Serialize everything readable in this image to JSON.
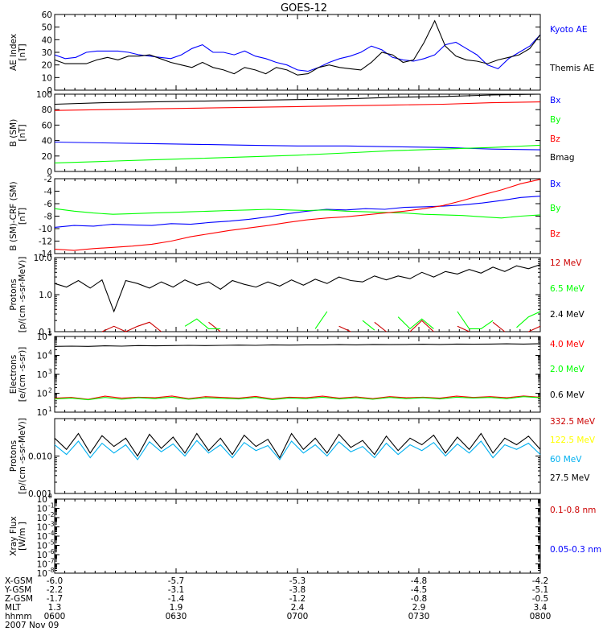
{
  "title": "GOES-12",
  "colors": {
    "black": "#000000",
    "blue": "#0000ff",
    "green": "#00ff00",
    "red": "#ff0000",
    "yellow": "#ffff00",
    "cyan": "#00b0f0",
    "darkred": "#cc0000"
  },
  "chart_data": [
    {
      "id": "ae",
      "type": "line",
      "ylabel_lines": [
        "AE Index",
        "[nT]"
      ],
      "ylim": [
        0,
        60
      ],
      "yscale": "linear",
      "ticks": [
        "0",
        "10",
        "20",
        "30",
        "40",
        "50",
        "60"
      ],
      "tick_values": [
        0,
        10,
        20,
        30,
        40,
        50,
        60
      ],
      "series": [
        {
          "name": "Kyoto AE",
          "color": "#0000ff",
          "values": [
            28,
            25,
            26,
            30,
            31,
            31,
            31,
            30,
            28,
            27,
            26,
            25,
            28,
            33,
            36,
            30,
            30,
            28,
            31,
            27,
            25,
            22,
            20,
            16,
            15,
            18,
            22,
            25,
            27,
            30,
            35,
            32,
            26,
            24,
            23,
            25,
            28,
            36,
            38,
            33,
            28,
            20,
            17,
            25,
            30,
            35,
            44
          ]
        },
        {
          "name": "Themis AE",
          "color": "#000000",
          "values": [
            24,
            21,
            21,
            21,
            24,
            26,
            24,
            27,
            27,
            28,
            25,
            22,
            20,
            18,
            22,
            18,
            16,
            13,
            18,
            16,
            13,
            18,
            16,
            12,
            13,
            18,
            20,
            18,
            17,
            16,
            22,
            30,
            28,
            22,
            24,
            38,
            55,
            35,
            27,
            24,
            23,
            21,
            24,
            26,
            28,
            33,
            44
          ]
        }
      ]
    },
    {
      "id": "bsm",
      "type": "line",
      "ylabel_lines": [
        "B (SM)",
        "[nT]"
      ],
      "ylim": [
        0,
        100
      ],
      "yscale": "linear",
      "ticks": [
        "0",
        "20",
        "40",
        "60",
        "80",
        "100"
      ],
      "tick_values": [
        0,
        20,
        40,
        60,
        80,
        100
      ],
      "series": [
        {
          "name": "Bx",
          "color": "#0000ff",
          "values": [
            38,
            37,
            36,
            35,
            34,
            33,
            33,
            32,
            31,
            29,
            28
          ]
        },
        {
          "name": "By",
          "color": "#00ff00",
          "values": [
            11,
            13,
            15,
            17,
            19,
            21,
            24,
            27,
            29,
            31,
            34
          ]
        },
        {
          "name": "Bz",
          "color": "#ff0000",
          "values": [
            79,
            80,
            81,
            82,
            83,
            84,
            85,
            86,
            87,
            89,
            90
          ]
        },
        {
          "name": "Bmag",
          "color": "#000000",
          "values": [
            87,
            89,
            90,
            91,
            92,
            93,
            94,
            96,
            97,
            99,
            100
          ]
        }
      ]
    },
    {
      "id": "bdiff",
      "type": "line",
      "ylabel_lines": [
        "B (SM)-CRF (SM)",
        "[nT]"
      ],
      "ylim": [
        -14,
        -2
      ],
      "yscale": "linear",
      "ticks": [
        "-14",
        "-12",
        "-10",
        "-8",
        "-6",
        "-4",
        "-2"
      ],
      "tick_values": [
        -14,
        -12,
        -10,
        -8,
        -6,
        -4,
        -2
      ],
      "series": [
        {
          "name": "Bx",
          "color": "#0000ff",
          "values": [
            -9.8,
            -9.5,
            -9.6,
            -9.3,
            -9.4,
            -9.5,
            -9.2,
            -9.3,
            -9.0,
            -8.8,
            -8.5,
            -8.1,
            -7.6,
            -7.2,
            -6.9,
            -7.0,
            -6.8,
            -6.9,
            -6.6,
            -6.5,
            -6.4,
            -6.2,
            -5.9,
            -5.5,
            -5.0,
            -4.8
          ]
        },
        {
          "name": "By",
          "color": "#00ff00",
          "values": [
            -6.8,
            -7.2,
            -7.5,
            -7.7,
            -7.6,
            -7.5,
            -7.4,
            -7.3,
            -7.2,
            -7.1,
            -7.0,
            -6.9,
            -7.0,
            -7.1,
            -7.0,
            -7.2,
            -7.3,
            -7.4,
            -7.5,
            -7.7,
            -7.8,
            -7.9,
            -8.1,
            -8.3,
            -8.0,
            -7.8
          ]
        },
        {
          "name": "Bz",
          "color": "#ff0000",
          "values": [
            -13.3,
            -13.5,
            -13.2,
            -13.0,
            -12.8,
            -12.5,
            -12.0,
            -11.3,
            -10.8,
            -10.3,
            -9.9,
            -9.5,
            -9.0,
            -8.6,
            -8.3,
            -8.1,
            -7.8,
            -7.5,
            -7.2,
            -6.8,
            -6.3,
            -5.5,
            -4.6,
            -3.8,
            -2.8,
            -2.1
          ]
        }
      ]
    },
    {
      "id": "protons1",
      "type": "line",
      "ylabel_lines": [
        "Protons",
        "[p/(cm -s-sr-MeV)]"
      ],
      "ylim": [
        0.1,
        10
      ],
      "yscale": "log",
      "ticks": [
        "0.1",
        "1.0",
        "10.0"
      ],
      "tick_values": [
        0.1,
        1,
        10
      ],
      "series": [
        {
          "name": "12 MeV",
          "color": "#cc0000",
          "values": [
            null,
            null,
            null,
            null,
            0.1,
            0.14,
            0.1,
            0.14,
            0.18,
            0.1,
            null,
            null,
            null,
            0.18,
            0.1,
            null,
            null,
            null,
            null,
            null,
            null,
            null,
            null,
            null,
            0.14,
            0.1,
            null,
            0.18,
            0.1,
            null,
            0.1,
            0.2,
            0.1,
            null,
            0.14,
            0.1,
            null,
            0.18,
            0.1,
            null,
            0.1,
            0.14
          ]
        },
        {
          "name": "6.5 MeV",
          "color": "#00ff00",
          "values": [
            null,
            null,
            null,
            null,
            null,
            null,
            null,
            null,
            null,
            null,
            null,
            0.14,
            0.22,
            0.12,
            0.12,
            null,
            null,
            null,
            null,
            null,
            null,
            null,
            0.12,
            0.35,
            null,
            null,
            0.2,
            0.11,
            null,
            0.25,
            0.12,
            0.22,
            0.12,
            null,
            0.35,
            0.12,
            0.12,
            0.2,
            null,
            0.13,
            0.25,
            0.35
          ]
        },
        {
          "name": "2.4 MeV",
          "color": "#000000",
          "values": [
            2,
            1.6,
            2.4,
            1.5,
            2.5,
            0.35,
            2.4,
            2,
            1.5,
            2.2,
            1.6,
            2.5,
            1.8,
            2.2,
            1.4,
            2.4,
            1.9,
            1.6,
            2.2,
            1.7,
            2.5,
            1.8,
            2.6,
            2.0,
            3.0,
            2.4,
            2.2,
            3.2,
            2.5,
            3.2,
            2.7,
            4,
            3.0,
            4.2,
            3.6,
            4.8,
            3.8,
            5.5,
            4.2,
            6,
            5,
            6.5
          ]
        },
        {
          "name": "",
          "color": "#000000",
          "values": []
        }
      ]
    },
    {
      "id": "electrons",
      "type": "line",
      "ylabel_lines": [
        "Electrons",
        "[e/(cm -s-sr)]"
      ],
      "ylim": [
        10,
        100000
      ],
      "yscale": "log",
      "ticks": [
        "10",
        "10",
        "10",
        "10",
        "10"
      ],
      "tick_exp": [
        "1",
        "2",
        "3",
        "4",
        "5"
      ],
      "tick_values": [
        10,
        100,
        1000,
        10000,
        100000
      ],
      "series": [
        {
          "name": "4.0 MeV",
          "color": "#ff0000",
          "values": [
            55,
            60,
            48,
            70,
            55,
            62,
            58,
            72,
            52,
            66,
            60,
            55,
            68,
            50,
            62,
            58,
            70,
            55,
            64,
            52,
            66,
            58,
            62,
            55,
            70,
            60,
            66,
            58,
            72,
            62
          ]
        },
        {
          "name": "2.0 MeV",
          "color": "#00ff00",
          "values": [
            50,
            55,
            45,
            60,
            48,
            58,
            52,
            62,
            48,
            58,
            54,
            50,
            60,
            46,
            56,
            52,
            62,
            50,
            58,
            48,
            60,
            52,
            58,
            50,
            62,
            56,
            60,
            52,
            66,
            58
          ]
        },
        {
          "name": "0.6 MeV",
          "color": "#000000",
          "values": [
            30000,
            31000,
            30000,
            32000,
            31000,
            33000,
            32000,
            33000,
            34000,
            33000,
            34000,
            35000,
            34000,
            36000,
            35000,
            36000,
            36000,
            37000,
            36000,
            38000,
            37000,
            38000,
            39000,
            38000,
            40000,
            39000,
            40000,
            41000,
            40000,
            42000
          ]
        }
      ]
    },
    {
      "id": "protons2",
      "type": "line",
      "ylabel_lines": [
        "Protons",
        "[p/(cm -s-sr-MeV)]"
      ],
      "ylim": [
        0.001,
        0.1
      ],
      "yscale": "log",
      "ticks": [
        "0.001",
        "0.010"
      ],
      "tick_values": [
        0.001,
        0.01
      ],
      "series": [
        {
          "name": "332.5 MeV",
          "color": "#cc0000",
          "values": []
        },
        {
          "name": "122.5 MeV",
          "color": "#ffff00",
          "values": []
        },
        {
          "name": "60 MeV",
          "color": "#00b0f0",
          "values": [
            0.02,
            0.011,
            0.025,
            0.009,
            0.022,
            0.012,
            0.02,
            0.008,
            0.024,
            0.013,
            0.021,
            0.01,
            0.026,
            0.012,
            0.02,
            0.009,
            0.023,
            0.014,
            0.019,
            0.008,
            0.025,
            0.012,
            0.02,
            0.01,
            0.024,
            0.013,
            0.018,
            0.009,
            0.022,
            0.011,
            0.02,
            0.014,
            0.023,
            0.01,
            0.021,
            0.012,
            0.025,
            0.009,
            0.02,
            0.015,
            0.022,
            0.011
          ]
        },
        {
          "name": "27.5 MeV",
          "color": "#000000",
          "values": [
            0.03,
            0.015,
            0.04,
            0.012,
            0.035,
            0.018,
            0.03,
            0.01,
            0.038,
            0.016,
            0.032,
            0.012,
            0.04,
            0.014,
            0.03,
            0.011,
            0.036,
            0.018,
            0.028,
            0.009,
            0.04,
            0.015,
            0.03,
            0.012,
            0.038,
            0.017,
            0.026,
            0.011,
            0.034,
            0.014,
            0.03,
            0.02,
            0.036,
            0.012,
            0.032,
            0.015,
            0.04,
            0.012,
            0.03,
            0.02,
            0.034,
            0.015
          ]
        }
      ]
    },
    {
      "id": "xray",
      "type": "line",
      "ylabel_lines": [
        "Xray Flux",
        "[W/m ]"
      ],
      "ylim": [
        1e-08,
        1
      ],
      "yscale": "log",
      "ticks": [
        "10",
        "10",
        "10",
        "10",
        "10",
        "10",
        "10",
        "10",
        "10"
      ],
      "tick_exp": [
        "-8",
        "-7",
        "-6",
        "-5",
        "-4",
        "-3",
        "-2",
        "-1",
        "0"
      ],
      "tick_values": [
        1e-08,
        1e-07,
        1e-06,
        1e-05,
        0.0001,
        0.001,
        0.01,
        0.1,
        1
      ],
      "series": [
        {
          "name": "0.1-0.8 nm",
          "color": "#cc0000",
          "values": []
        },
        {
          "name": "0.05-0.3 nm",
          "color": "#0000ff",
          "values": []
        }
      ]
    }
  ],
  "xaxis": {
    "row_labels": [
      "X-GSM",
      "Y-GSM",
      "Z-GSM",
      "MLT",
      "hhmm",
      "2007 Nov 09"
    ],
    "columns": [
      [
        "-6.0",
        "-2.2",
        "-1.7",
        "1.3",
        "0600"
      ],
      [
        "-5.7",
        "-3.1",
        "-1.4",
        "1.9",
        "0630"
      ],
      [
        "-5.3",
        "-3.8",
        "-1.2",
        "2.4",
        "0700"
      ],
      [
        "-4.8",
        "-4.5",
        "-0.8",
        "2.9",
        "0730"
      ],
      [
        "-4.2",
        "-5.1",
        "-0.5",
        "3.4",
        "0800"
      ]
    ]
  }
}
